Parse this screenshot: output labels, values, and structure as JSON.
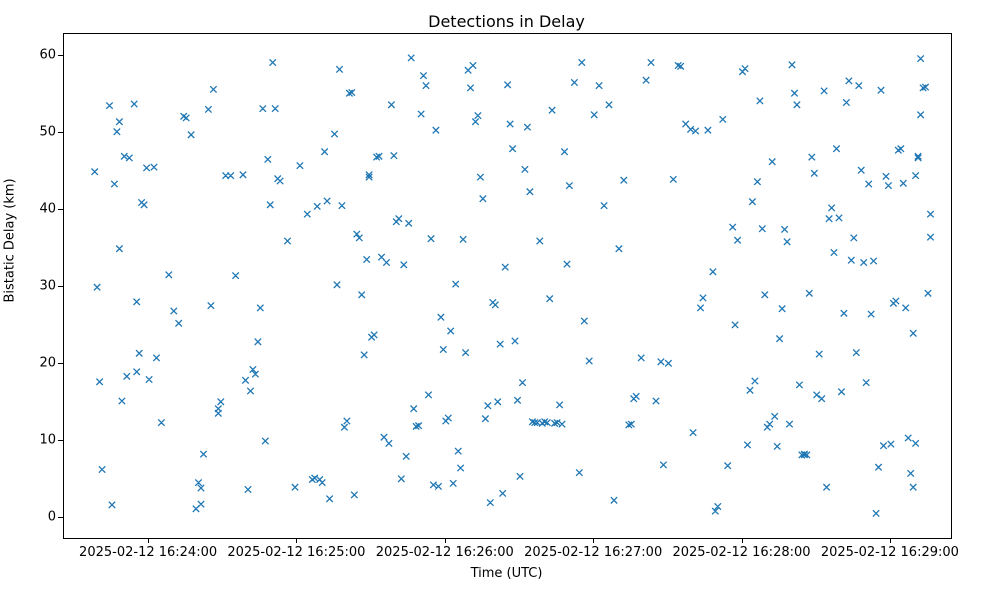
{
  "chart_data": {
    "type": "scatter",
    "title": "Detections in Delay",
    "xlabel": "Time (UTC)",
    "ylabel": "Bistatic Delay (km)",
    "marker": "x",
    "marker_color": "#1f77b4",
    "legend": null,
    "grid": false,
    "x_unit": "seconds after 2025-02-12 16:24:00 UTC",
    "x_tick_seconds": [
      0,
      60,
      120,
      180,
      240,
      300
    ],
    "x_tick_labels": [
      "2025-02-12 16:24:00",
      "2025-02-12 16:25:00",
      "2025-02-12 16:26:00",
      "2025-02-12 16:27:00",
      "2025-02-12 16:28:00",
      "2025-02-12 16:29:00"
    ],
    "y_ticks": [
      0,
      10,
      20,
      30,
      40,
      50,
      60
    ],
    "xlim_seconds": [
      -34.4,
      324.3
    ],
    "ylim": [
      -2.6,
      62.9
    ],
    "points": [
      [
        -22,
        45.0
      ],
      [
        -21,
        30.0
      ],
      [
        -20,
        17.7
      ],
      [
        -19,
        6.3
      ],
      [
        -16,
        53.6
      ],
      [
        -15,
        1.7
      ],
      [
        -14,
        43.4
      ],
      [
        -13,
        50.2
      ],
      [
        -12,
        51.5
      ],
      [
        -12,
        35.0
      ],
      [
        -11,
        15.2
      ],
      [
        -10,
        47.0
      ],
      [
        -9,
        18.4
      ],
      [
        -8,
        46.8
      ],
      [
        -6,
        53.8
      ],
      [
        -5,
        28.1
      ],
      [
        -5,
        19.0
      ],
      [
        -4,
        21.4
      ],
      [
        -3,
        41.0
      ],
      [
        -2,
        40.7
      ],
      [
        -1,
        45.5
      ],
      [
        0,
        18.0
      ],
      [
        2,
        45.6
      ],
      [
        3,
        20.8
      ],
      [
        5,
        12.4
      ],
      [
        8,
        31.6
      ],
      [
        10,
        26.9
      ],
      [
        12,
        25.3
      ],
      [
        14,
        52.2
      ],
      [
        15,
        52.0
      ],
      [
        17,
        49.8
      ],
      [
        19,
        1.2
      ],
      [
        20,
        4.6
      ],
      [
        21,
        3.9
      ],
      [
        21,
        1.8
      ],
      [
        22,
        8.3
      ],
      [
        24,
        53.1
      ],
      [
        25,
        27.6
      ],
      [
        26,
        55.7
      ],
      [
        28,
        14.2
      ],
      [
        28,
        13.6
      ],
      [
        29,
        15.1
      ],
      [
        31,
        44.5
      ],
      [
        33,
        44.5
      ],
      [
        35,
        31.5
      ],
      [
        38,
        44.6
      ],
      [
        39,
        17.9
      ],
      [
        40,
        3.7
      ],
      [
        41,
        16.5
      ],
      [
        42,
        19.3
      ],
      [
        43,
        18.7
      ],
      [
        44,
        22.9
      ],
      [
        45,
        27.3
      ],
      [
        46,
        53.2
      ],
      [
        47,
        10.0
      ],
      [
        48,
        46.6
      ],
      [
        49,
        40.7
      ],
      [
        50,
        59.2
      ],
      [
        51,
        53.2
      ],
      [
        52,
        44.1
      ],
      [
        53,
        43.8
      ],
      [
        56,
        36.0
      ],
      [
        59,
        4.0
      ],
      [
        61,
        45.8
      ],
      [
        64,
        39.5
      ],
      [
        66,
        5.0
      ],
      [
        67,
        5.2
      ],
      [
        68,
        40.5
      ],
      [
        69,
        5.0
      ],
      [
        70,
        4.6
      ],
      [
        71,
        47.6
      ],
      [
        72,
        41.2
      ],
      [
        73,
        2.5
      ],
      [
        75,
        49.9
      ],
      [
        76,
        30.3
      ],
      [
        77,
        58.3
      ],
      [
        78,
        40.6
      ],
      [
        79,
        11.8
      ],
      [
        80,
        12.6
      ],
      [
        81,
        55.2
      ],
      [
        82,
        55.3
      ],
      [
        83,
        3.0
      ],
      [
        84,
        36.9
      ],
      [
        85,
        36.4
      ],
      [
        86,
        29.0
      ],
      [
        87,
        21.2
      ],
      [
        88,
        33.6
      ],
      [
        89,
        44.3
      ],
      [
        89,
        44.6
      ],
      [
        90,
        23.5
      ],
      [
        91,
        23.8
      ],
      [
        92,
        46.9
      ],
      [
        93,
        47.0
      ],
      [
        94,
        33.9
      ],
      [
        95,
        10.5
      ],
      [
        96,
        33.2
      ],
      [
        97,
        9.7
      ],
      [
        98,
        53.7
      ],
      [
        99,
        47.1
      ],
      [
        100,
        38.5
      ],
      [
        101,
        38.9
      ],
      [
        102,
        5.1
      ],
      [
        103,
        32.9
      ],
      [
        104,
        8.0
      ],
      [
        105,
        38.3
      ],
      [
        106,
        59.8
      ],
      [
        107,
        14.2
      ],
      [
        108,
        11.9
      ],
      [
        109,
        12.0
      ],
      [
        110,
        52.5
      ],
      [
        111,
        57.5
      ],
      [
        112,
        56.2
      ],
      [
        113,
        16.0
      ],
      [
        114,
        36.3
      ],
      [
        115,
        4.3
      ],
      [
        116,
        50.4
      ],
      [
        117,
        4.1
      ],
      [
        118,
        26.1
      ],
      [
        119,
        21.9
      ],
      [
        120,
        12.6
      ],
      [
        121,
        13.0
      ],
      [
        122,
        24.3
      ],
      [
        123,
        4.5
      ],
      [
        124,
        30.4
      ],
      [
        125,
        8.7
      ],
      [
        126,
        6.5
      ],
      [
        127,
        36.2
      ],
      [
        128,
        21.5
      ],
      [
        129,
        58.2
      ],
      [
        130,
        55.9
      ],
      [
        131,
        58.8
      ],
      [
        132,
        51.5
      ],
      [
        133,
        52.3
      ],
      [
        134,
        44.3
      ],
      [
        135,
        41.5
      ],
      [
        136,
        12.9
      ],
      [
        137,
        14.6
      ],
      [
        138,
        2.0
      ],
      [
        139,
        28.0
      ],
      [
        140,
        27.7
      ],
      [
        141,
        15.1
      ],
      [
        142,
        22.6
      ],
      [
        143,
        3.2
      ],
      [
        144,
        32.6
      ],
      [
        145,
        56.3
      ],
      [
        146,
        51.2
      ],
      [
        147,
        48.0
      ],
      [
        148,
        23.0
      ],
      [
        149,
        15.3
      ],
      [
        150,
        5.4
      ],
      [
        151,
        17.6
      ],
      [
        152,
        45.3
      ],
      [
        153,
        50.8
      ],
      [
        154,
        42.4
      ],
      [
        155,
        12.5
      ],
      [
        156,
        12.4
      ],
      [
        157,
        12.4
      ],
      [
        158,
        36.0
      ],
      [
        159,
        12.3
      ],
      [
        160,
        12.5
      ],
      [
        161,
        12.4
      ],
      [
        162,
        28.5
      ],
      [
        163,
        53.0
      ],
      [
        164,
        12.3
      ],
      [
        165,
        12.4
      ],
      [
        166,
        14.7
      ],
      [
        167,
        12.2
      ],
      [
        168,
        47.6
      ],
      [
        169,
        33.0
      ],
      [
        170,
        43.2
      ],
      [
        172,
        56.6
      ],
      [
        174,
        5.9
      ],
      [
        175,
        59.2
      ],
      [
        176,
        25.6
      ],
      [
        178,
        20.4
      ],
      [
        180,
        52.4
      ],
      [
        182,
        56.2
      ],
      [
        184,
        40.6
      ],
      [
        186,
        53.7
      ],
      [
        188,
        2.3
      ],
      [
        190,
        35.0
      ],
      [
        192,
        43.9
      ],
      [
        194,
        12.1
      ],
      [
        195,
        12.2
      ],
      [
        196,
        15.5
      ],
      [
        197,
        15.8
      ],
      [
        199,
        20.8
      ],
      [
        201,
        56.9
      ],
      [
        203,
        59.2
      ],
      [
        205,
        15.2
      ],
      [
        207,
        20.3
      ],
      [
        208,
        6.9
      ],
      [
        210,
        20.1
      ],
      [
        212,
        44.0
      ],
      [
        214,
        58.8
      ],
      [
        215,
        58.7
      ],
      [
        217,
        51.2
      ],
      [
        219,
        50.5
      ],
      [
        220,
        11.1
      ],
      [
        221,
        50.3
      ],
      [
        223,
        27.3
      ],
      [
        224,
        28.6
      ],
      [
        226,
        50.4
      ],
      [
        228,
        32.0
      ],
      [
        229,
        0.9
      ],
      [
        230,
        1.5
      ],
      [
        232,
        51.8
      ],
      [
        234,
        6.8
      ],
      [
        236,
        37.8
      ],
      [
        237,
        25.1
      ],
      [
        238,
        36.1
      ],
      [
        240,
        58.0
      ],
      [
        241,
        58.4
      ],
      [
        242,
        9.5
      ],
      [
        243,
        16.6
      ],
      [
        244,
        41.1
      ],
      [
        245,
        17.8
      ],
      [
        246,
        43.7
      ],
      [
        247,
        54.2
      ],
      [
        248,
        37.6
      ],
      [
        249,
        29.0
      ],
      [
        250,
        11.8
      ],
      [
        251,
        12.2
      ],
      [
        252,
        46.3
      ],
      [
        253,
        13.2
      ],
      [
        254,
        9.3
      ],
      [
        255,
        23.3
      ],
      [
        256,
        27.2
      ],
      [
        257,
        37.5
      ],
      [
        258,
        35.9
      ],
      [
        259,
        12.2
      ],
      [
        260,
        58.9
      ],
      [
        261,
        55.2
      ],
      [
        262,
        53.7
      ],
      [
        263,
        17.3
      ],
      [
        264,
        8.2
      ],
      [
        265,
        8.2
      ],
      [
        265,
        8.3
      ],
      [
        266,
        8.2
      ],
      [
        267,
        29.2
      ],
      [
        268,
        46.9
      ],
      [
        269,
        44.8
      ],
      [
        270,
        16.0
      ],
      [
        271,
        21.3
      ],
      [
        272,
        15.5
      ],
      [
        273,
        55.5
      ],
      [
        274,
        4.0
      ],
      [
        275,
        38.9
      ],
      [
        276,
        40.3
      ],
      [
        277,
        34.5
      ],
      [
        278,
        48.0
      ],
      [
        279,
        39.0
      ],
      [
        280,
        16.4
      ],
      [
        281,
        26.6
      ],
      [
        282,
        54.0
      ],
      [
        283,
        56.8
      ],
      [
        284,
        33.5
      ],
      [
        285,
        36.4
      ],
      [
        286,
        21.5
      ],
      [
        287,
        56.2
      ],
      [
        288,
        45.2
      ],
      [
        289,
        33.2
      ],
      [
        290,
        17.6
      ],
      [
        291,
        43.4
      ],
      [
        292,
        26.5
      ],
      [
        293,
        33.4
      ],
      [
        294,
        0.6
      ],
      [
        295,
        6.6
      ],
      [
        296,
        55.6
      ],
      [
        297,
        9.4
      ],
      [
        298,
        44.4
      ],
      [
        299,
        43.2
      ],
      [
        300,
        9.6
      ],
      [
        301,
        27.9
      ],
      [
        302,
        28.2
      ],
      [
        303,
        47.8
      ],
      [
        304,
        48.0
      ],
      [
        305,
        43.5
      ],
      [
        306,
        27.3
      ],
      [
        307,
        10.4
      ],
      [
        308,
        5.8
      ],
      [
        309,
        24.0
      ],
      [
        309,
        4.0
      ],
      [
        310,
        44.5
      ],
      [
        310,
        9.7
      ],
      [
        311,
        46.8
      ],
      [
        311,
        47.0
      ],
      [
        312,
        52.4
      ],
      [
        312,
        59.7
      ],
      [
        313,
        55.9
      ],
      [
        314,
        56.0
      ],
      [
        315,
        29.2
      ],
      [
        316,
        36.5
      ],
      [
        316,
        39.5
      ]
    ]
  }
}
